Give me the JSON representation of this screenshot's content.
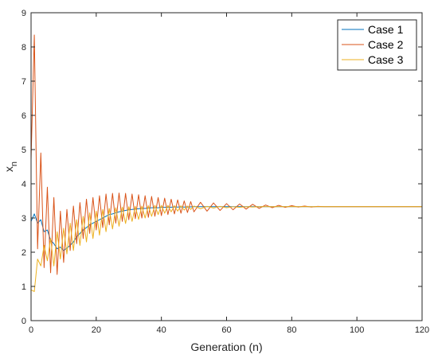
{
  "chart_data": {
    "type": "line",
    "xlabel": "Generation (n)",
    "ylabel": "x",
    "ylabel_subscript": "n",
    "xlim": [
      0,
      120
    ],
    "ylim": [
      0,
      9
    ],
    "xticks": [
      "0",
      "20",
      "40",
      "60",
      "80",
      "100",
      "120"
    ],
    "yticks": [
      "0",
      "1",
      "2",
      "3",
      "4",
      "5",
      "6",
      "7",
      "8",
      "9"
    ],
    "grid": false,
    "legend_position": "top-right",
    "series": [
      {
        "name": "Case 1",
        "color": "#0072BD",
        "x": [
          0,
          1,
          2,
          3,
          4,
          5,
          6,
          7,
          8,
          9,
          10,
          11,
          12,
          13,
          14,
          15,
          16,
          17,
          18,
          19,
          20,
          21,
          22,
          23,
          24,
          25,
          26,
          27,
          28,
          29,
          30,
          31,
          32,
          33,
          34,
          35,
          36,
          37,
          38,
          39,
          40,
          42,
          44,
          46,
          48,
          50,
          55,
          60,
          65,
          70,
          80,
          90,
          100,
          110,
          120
        ],
        "y": [
          2.9,
          3.12,
          2.85,
          2.95,
          2.6,
          2.65,
          2.35,
          2.25,
          2.1,
          2.15,
          2.05,
          2.12,
          2.2,
          2.3,
          2.45,
          2.55,
          2.65,
          2.72,
          2.8,
          2.85,
          2.9,
          2.95,
          3.0,
          3.05,
          3.1,
          3.12,
          3.15,
          3.18,
          3.2,
          3.22,
          3.24,
          3.25,
          3.26,
          3.27,
          3.28,
          3.28,
          3.29,
          3.3,
          3.3,
          3.3,
          3.31,
          3.31,
          3.32,
          3.32,
          3.32,
          3.33,
          3.33,
          3.33,
          3.33,
          3.33,
          3.33,
          3.33,
          3.33,
          3.33,
          3.33
        ]
      },
      {
        "name": "Case 2",
        "color": "#D95319",
        "x": [
          0,
          1,
          2,
          3,
          4,
          5,
          6,
          7,
          8,
          9,
          10,
          11,
          12,
          13,
          14,
          15,
          16,
          17,
          18,
          19,
          20,
          21,
          22,
          23,
          24,
          25,
          26,
          27,
          28,
          29,
          30,
          31,
          32,
          33,
          34,
          35,
          36,
          37,
          38,
          39,
          40,
          41,
          42,
          43,
          44,
          45,
          46,
          47,
          48,
          49,
          50,
          52,
          54,
          56,
          58,
          60,
          62,
          64,
          66,
          68,
          70,
          72,
          74,
          76,
          78,
          80,
          82,
          84,
          86,
          88,
          90,
          95,
          100,
          110,
          120
        ],
        "y": [
          4.7,
          8.35,
          2.1,
          4.9,
          1.55,
          3.9,
          1.4,
          3.6,
          1.35,
          3.2,
          1.7,
          3.25,
          2.05,
          3.35,
          2.25,
          3.45,
          2.4,
          3.55,
          2.55,
          3.6,
          2.65,
          3.65,
          2.72,
          3.7,
          2.8,
          3.72,
          2.85,
          3.73,
          2.9,
          3.72,
          2.95,
          3.7,
          2.98,
          3.68,
          3.0,
          3.65,
          3.02,
          3.63,
          3.05,
          3.6,
          3.07,
          3.58,
          3.1,
          3.55,
          3.12,
          3.53,
          3.14,
          3.5,
          3.16,
          3.48,
          3.18,
          3.46,
          3.2,
          3.44,
          3.22,
          3.42,
          3.24,
          3.41,
          3.26,
          3.4,
          3.28,
          3.38,
          3.3,
          3.37,
          3.31,
          3.36,
          3.32,
          3.35,
          3.32,
          3.34,
          3.33,
          3.33,
          3.33,
          3.33,
          3.33
        ]
      },
      {
        "name": "Case 3",
        "color": "#EDB120",
        "x": [
          0,
          1,
          2,
          3,
          4,
          5,
          6,
          7,
          8,
          9,
          10,
          11,
          12,
          13,
          14,
          15,
          16,
          17,
          18,
          19,
          20,
          21,
          22,
          23,
          24,
          25,
          26,
          27,
          28,
          29,
          30,
          31,
          32,
          33,
          34,
          35,
          36,
          37,
          38,
          39,
          40,
          41,
          42,
          43,
          44,
          45,
          46,
          47,
          48,
          49,
          50,
          52,
          54,
          56,
          58,
          60,
          62,
          64,
          66,
          68,
          70,
          75,
          80,
          90,
          100,
          110,
          120
        ],
        "y": [
          0.9,
          0.85,
          1.8,
          1.6,
          2.2,
          1.75,
          2.4,
          1.6,
          2.6,
          1.8,
          2.7,
          1.95,
          2.85,
          2.05,
          2.95,
          2.2,
          3.05,
          2.3,
          3.15,
          2.4,
          3.2,
          2.5,
          3.25,
          2.6,
          3.28,
          2.68,
          3.3,
          2.76,
          3.32,
          2.84,
          3.33,
          2.9,
          3.34,
          2.96,
          3.35,
          3.0,
          3.36,
          3.05,
          3.37,
          3.1,
          3.37,
          3.14,
          3.37,
          3.18,
          3.36,
          3.2,
          3.36,
          3.23,
          3.35,
          3.25,
          3.35,
          3.27,
          3.34,
          3.29,
          3.34,
          3.3,
          3.33,
          3.31,
          3.33,
          3.32,
          3.33,
          3.33,
          3.33,
          3.33,
          3.33,
          3.33,
          3.33
        ]
      }
    ]
  }
}
